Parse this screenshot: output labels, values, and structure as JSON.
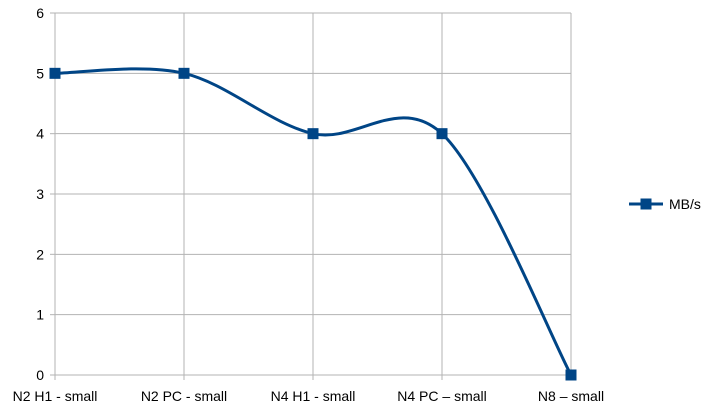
{
  "chart_data": {
    "type": "line",
    "categories": [
      "N2 H1 - small",
      "N2 PC - small",
      "N4 H1 - small",
      "N4 PC – small",
      "N8 – small"
    ],
    "series": [
      {
        "name": "MB/s",
        "values": [
          5,
          5,
          4,
          4,
          0
        ],
        "color": "#004586",
        "marker": "square",
        "smooth": true
      }
    ],
    "ylim": [
      0,
      6
    ],
    "yticks": [
      0,
      1,
      2,
      3,
      4,
      5,
      6
    ],
    "grid": true,
    "legend_position": "right"
  }
}
